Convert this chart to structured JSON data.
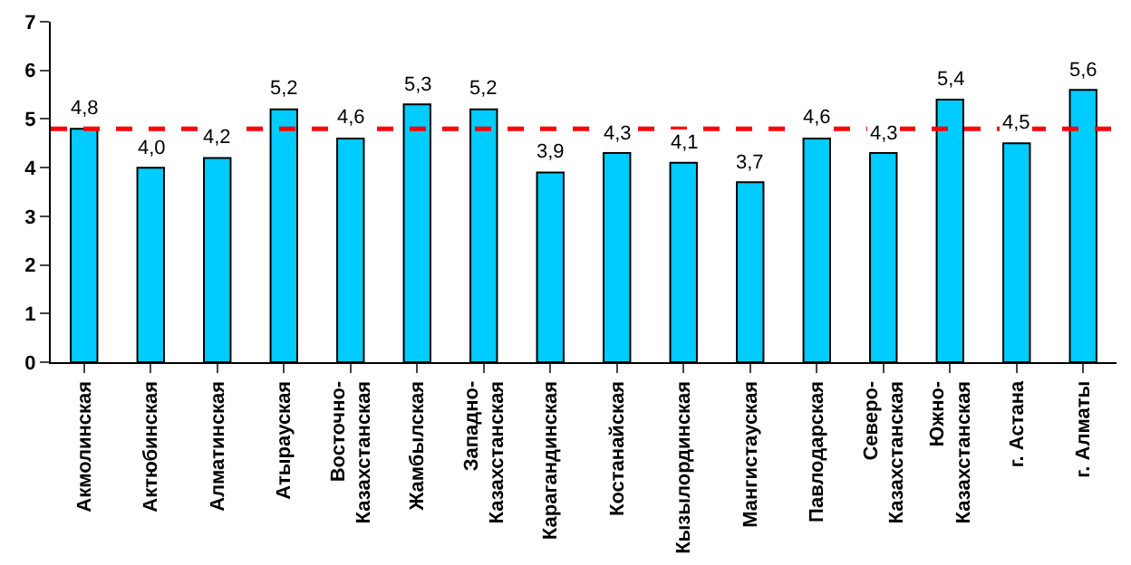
{
  "chart_data": {
    "type": "bar",
    "categories": [
      "Акмолинская",
      "Актюбинская",
      "Алматинская",
      "Атырауская",
      "Восточно-Казахстанская",
      "Жамбылская",
      "Западно-Казахстанская",
      "Карагандинская",
      "Костанайская",
      "Кызылординская",
      "Мангистауская",
      "Павлодарская",
      "Северо-Казахстанская",
      "Южно-Казахстанская",
      "г. Астана",
      "г. Алматы"
    ],
    "values": [
      4.8,
      4.0,
      4.2,
      5.2,
      4.6,
      5.3,
      5.2,
      3.9,
      4.3,
      4.1,
      3.7,
      4.6,
      4.3,
      5.4,
      4.5,
      5.6
    ],
    "value_labels": [
      "4,8",
      "4,0",
      "4,2",
      "5,2",
      "4,6",
      "5,3",
      "5,2",
      "3,9",
      "4,3",
      "4,1",
      "3,7",
      "4,6",
      "4,3",
      "5,4",
      "4,5",
      "5,6"
    ],
    "color": "#00ccff",
    "ylim": [
      0,
      7
    ],
    "yticks": [
      0,
      1,
      2,
      3,
      4,
      5,
      6,
      7
    ],
    "ref_lines": [
      {
        "axis": "y",
        "value": 4.8,
        "color": "#ff0000",
        "line_style": "dashed"
      }
    ],
    "grid": false,
    "legend": false
  }
}
